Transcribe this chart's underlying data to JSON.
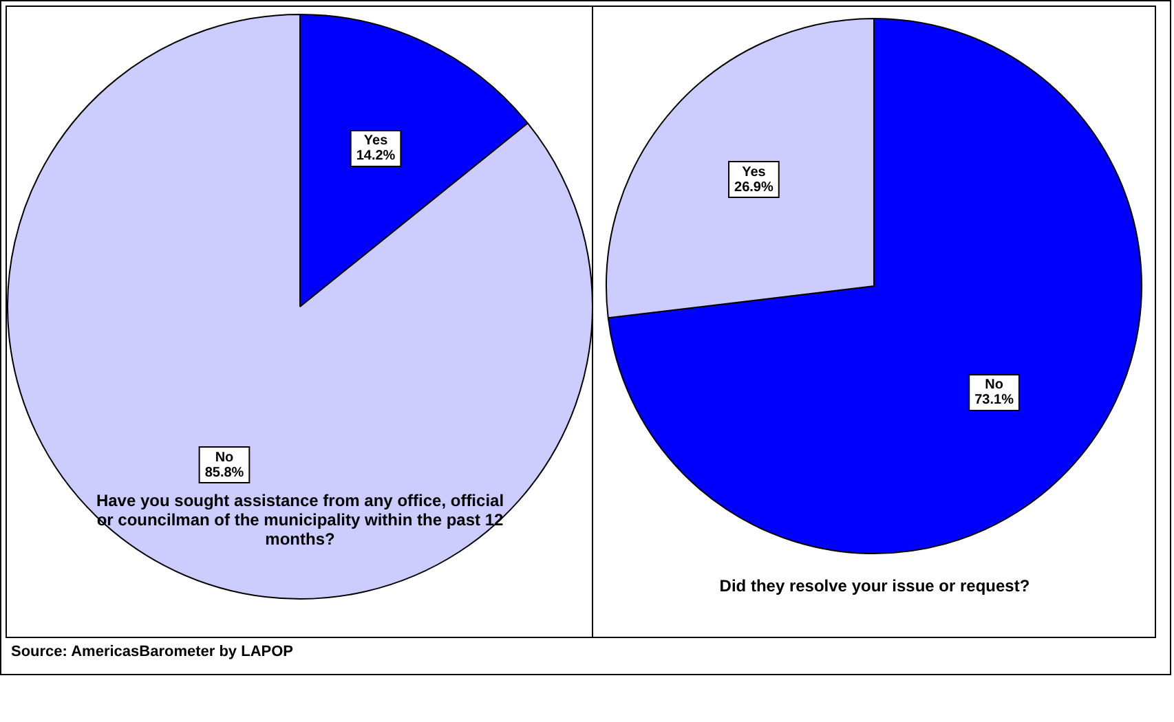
{
  "chart_data": [
    {
      "type": "pie",
      "title": "Have you sought assistance from any office, official or councilman of the municipality within the past 12 months?",
      "categories": [
        "Yes",
        "No"
      ],
      "values": [
        14.2,
        85.8
      ],
      "colors": [
        "#0000ff",
        "#ccccff"
      ],
      "value_labels": [
        "14.2%",
        "85.8%"
      ],
      "annotations": [
        "Source: AmericasBarometer by  LAPOP"
      ]
    },
    {
      "type": "pie",
      "title": "Did they resolve your issue or request?",
      "categories": [
        "No",
        "Yes"
      ],
      "values": [
        73.1,
        26.9
      ],
      "colors": [
        "#0000ff",
        "#ccccff"
      ],
      "value_labels": [
        "73.1%",
        "26.9%"
      ]
    }
  ]
}
